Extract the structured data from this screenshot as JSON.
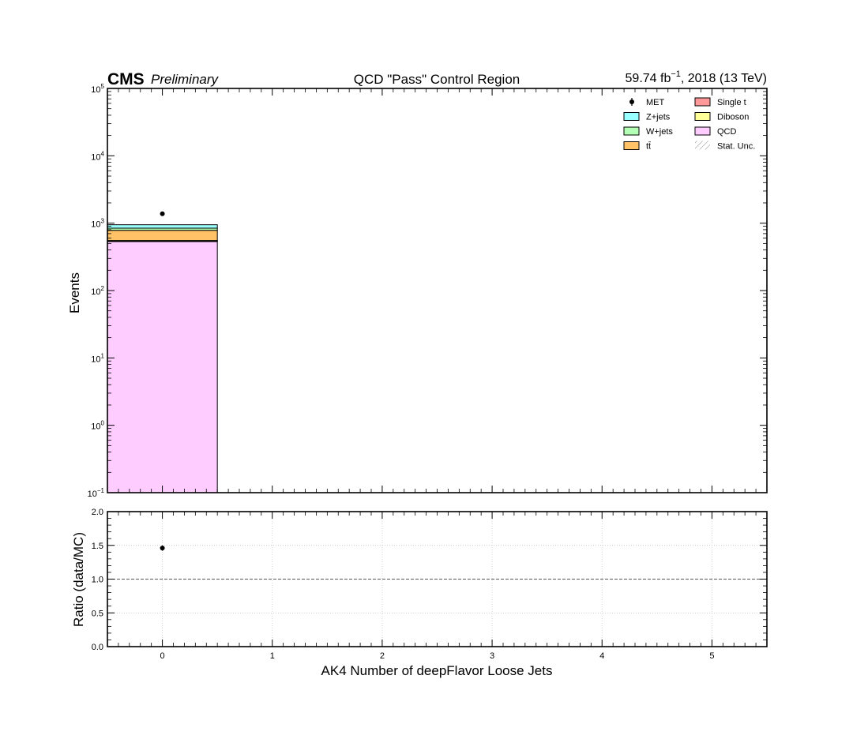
{
  "header": {
    "experiment": "CMS",
    "status": "Preliminary",
    "title": "QCD \"Pass\" Control Region",
    "lumi_value": "59.74 fb",
    "lumi_exp": "−1",
    "lumi_tail": ", 2018 (13 TeV)"
  },
  "chart_data": [
    {
      "type": "bar",
      "stacked": true,
      "scale": "log",
      "xlabel": "AK4 Number of deepFlavor Loose Jets",
      "ylabel": "Events",
      "xlim": [
        -0.5,
        5.5
      ],
      "ylim": [
        0.1,
        100000
      ],
      "xticks": [
        0,
        1,
        2,
        3,
        4,
        5
      ],
      "yticks": [
        {
          "value": 0.1,
          "base": "10",
          "exp": "−1"
        },
        {
          "value": 1,
          "base": "10",
          "exp": "0"
        },
        {
          "value": 10,
          "base": "10",
          "exp": "1"
        },
        {
          "value": 100,
          "base": "10",
          "exp": "2"
        },
        {
          "value": 1000,
          "base": "10",
          "exp": "3"
        },
        {
          "value": 10000,
          "base": "10",
          "exp": "4"
        },
        {
          "value": 100000,
          "base": "10",
          "exp": "5"
        }
      ],
      "bins": [
        [
          -0.5,
          0.5
        ],
        [
          0.5,
          1.5
        ],
        [
          1.5,
          2.5
        ],
        [
          2.5,
          3.5
        ],
        [
          3.5,
          4.5
        ],
        [
          4.5,
          5.5
        ]
      ],
      "series": [
        {
          "name": "QCD",
          "color": "#ffccff",
          "values": [
            540,
            0,
            0,
            0,
            0,
            0
          ]
        },
        {
          "name": "Diboson",
          "color": "#ffff99",
          "values": [
            4,
            0,
            0,
            0,
            0,
            0
          ]
        },
        {
          "name": "Single t",
          "color": "#ff9999",
          "values": [
            9,
            0,
            0,
            0,
            0,
            0
          ]
        },
        {
          "name": "tt̄",
          "color": "#ffc266",
          "values": [
            230,
            0,
            0,
            0,
            0,
            0
          ]
        },
        {
          "name": "W+jets",
          "color": "#b3ffb3",
          "values": [
            60,
            0,
            0,
            0,
            0,
            0
          ]
        },
        {
          "name": "Z+jets",
          "color": "#99ffff",
          "values": [
            105,
            0,
            0,
            0,
            0,
            0
          ]
        }
      ],
      "data_points": {
        "name": "MET",
        "x": [
          0
        ],
        "y": [
          1380
        ]
      },
      "uncertainty": {
        "name": "Stat. Unc."
      },
      "grid": false,
      "legend_placement": "top-right",
      "legend": [
        {
          "name": "MET",
          "kind": "point"
        },
        {
          "name": "Single t",
          "kind": "box",
          "color": "#ff9999"
        },
        {
          "name": "Z+jets",
          "kind": "box",
          "color": "#99ffff"
        },
        {
          "name": "Diboson",
          "kind": "box",
          "color": "#ffff99"
        },
        {
          "name": "W+jets",
          "kind": "box",
          "color": "#b3ffb3"
        },
        {
          "name": "QCD",
          "kind": "box",
          "color": "#ffccff"
        },
        {
          "name": "tt̄",
          "kind": "box",
          "color": "#ffc266"
        },
        {
          "name": "Stat. Unc.",
          "kind": "hatch"
        }
      ]
    },
    {
      "type": "scatter",
      "ylabel": "Ratio (data/MC)",
      "xlabel": "AK4 Number of deepFlavor Loose Jets",
      "xlim": [
        -0.5,
        5.5
      ],
      "ylim": [
        0.0,
        2.0
      ],
      "xticks": [
        0,
        1,
        2,
        3,
        4,
        5
      ],
      "yticks": [
        "0.0",
        "0.5",
        "1.0",
        "1.5",
        "2.0"
      ],
      "grid": true,
      "reference_line": 1.0,
      "points": [
        {
          "x": 0,
          "y": 1.46,
          "err": 0.04
        }
      ]
    }
  ]
}
